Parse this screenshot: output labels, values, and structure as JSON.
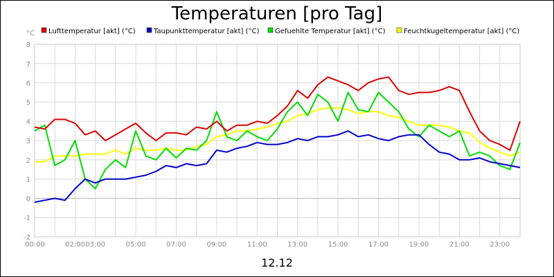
{
  "chart_data": {
    "type": "line",
    "title": "Temperaturen [pro Tag]",
    "ylabel": "°C",
    "xlabel": "12.12",
    "ylim": [
      -2,
      8
    ],
    "yticks": [
      "8",
      "7",
      "6",
      "5",
      "4",
      "3",
      "2",
      "1",
      "0",
      "-1",
      "-2"
    ],
    "xlim": [
      "00:00",
      "24:00"
    ],
    "xticks": [
      "00:00",
      "02:00",
      "03:00",
      "05:00",
      "07:00",
      "09:00",
      "11:00",
      "13:00",
      "15:00",
      "17:00",
      "19:00",
      "21:00",
      "23:00"
    ],
    "grid": true,
    "legend_position": "top",
    "x": [
      "00:00",
      "00:30",
      "01:00",
      "01:30",
      "02:00",
      "02:30",
      "03:00",
      "03:30",
      "04:00",
      "04:30",
      "05:00",
      "05:30",
      "06:00",
      "06:30",
      "07:00",
      "07:30",
      "08:00",
      "08:30",
      "09:00",
      "09:30",
      "10:00",
      "10:30",
      "11:00",
      "11:30",
      "12:00",
      "12:30",
      "13:00",
      "13:30",
      "14:00",
      "14:30",
      "15:00",
      "15:30",
      "16:00",
      "16:30",
      "17:00",
      "17:30",
      "18:00",
      "18:30",
      "19:00",
      "19:30",
      "20:00",
      "20:30",
      "21:00",
      "21:30",
      "22:00",
      "22:30",
      "23:00",
      "23:30",
      "24:00"
    ],
    "series": [
      {
        "name": "Lufttemperatur [akt] (°C)",
        "color": "#dd0000",
        "values": [
          3.7,
          3.6,
          4.1,
          4.1,
          3.9,
          3.3,
          3.5,
          3.0,
          3.3,
          3.6,
          3.9,
          3.4,
          3.0,
          3.4,
          3.4,
          3.3,
          3.7,
          3.6,
          4.0,
          3.5,
          3.8,
          3.8,
          4.0,
          3.9,
          4.3,
          4.8,
          5.6,
          5.2,
          5.9,
          6.3,
          6.1,
          5.9,
          5.6,
          6.0,
          6.2,
          6.3,
          5.6,
          5.4,
          5.5,
          5.5,
          5.6,
          5.8,
          5.6,
          4.5,
          3.5,
          3.0,
          2.8,
          2.5,
          4.0
        ]
      },
      {
        "name": "Taupunkttemperatur [akt] (°C)",
        "color": "#0000cc",
        "values": [
          -0.2,
          -0.1,
          0.0,
          -0.1,
          0.5,
          1.0,
          0.8,
          1.0,
          1.0,
          1.0,
          1.1,
          1.2,
          1.4,
          1.7,
          1.6,
          1.8,
          1.7,
          1.8,
          2.5,
          2.4,
          2.6,
          2.7,
          2.9,
          2.8,
          2.8,
          2.9,
          3.1,
          3.0,
          3.2,
          3.2,
          3.3,
          3.5,
          3.2,
          3.3,
          3.1,
          3.0,
          3.2,
          3.3,
          3.3,
          2.8,
          2.4,
          2.3,
          2.0,
          2.0,
          2.1,
          1.9,
          1.8,
          1.7,
          1.6
        ]
      },
      {
        "name": "Gefuehlte Temperatur [akt] (°C)",
        "color": "#00dd00",
        "values": [
          3.5,
          3.8,
          1.7,
          2.0,
          3.0,
          1.0,
          0.5,
          1.5,
          2.0,
          1.6,
          3.5,
          2.2,
          2.0,
          2.6,
          2.1,
          2.6,
          2.5,
          3.0,
          4.5,
          3.2,
          3.0,
          3.5,
          3.2,
          3.0,
          3.6,
          4.5,
          5.0,
          4.3,
          5.4,
          5.0,
          4.0,
          5.5,
          4.6,
          4.5,
          5.5,
          5.0,
          4.5,
          3.6,
          3.2,
          3.8,
          3.5,
          3.2,
          3.5,
          2.2,
          2.4,
          2.2,
          1.7,
          1.5,
          2.9
        ]
      },
      {
        "name": "Feuchtkugeltemperatur [akt] (°C)",
        "color": "#ffff00",
        "values": [
          1.9,
          1.9,
          2.2,
          2.2,
          2.2,
          2.3,
          2.3,
          2.3,
          2.5,
          2.3,
          2.6,
          2.5,
          2.5,
          2.6,
          2.5,
          2.5,
          2.7,
          2.8,
          3.2,
          3.3,
          3.5,
          3.5,
          3.6,
          3.7,
          3.9,
          4.0,
          4.3,
          4.4,
          4.6,
          4.7,
          4.7,
          4.6,
          4.4,
          4.5,
          4.5,
          4.3,
          4.2,
          4.0,
          3.8,
          3.8,
          3.8,
          3.7,
          3.5,
          3.4,
          2.9,
          2.6,
          2.4,
          2.2,
          2.4
        ]
      }
    ]
  }
}
